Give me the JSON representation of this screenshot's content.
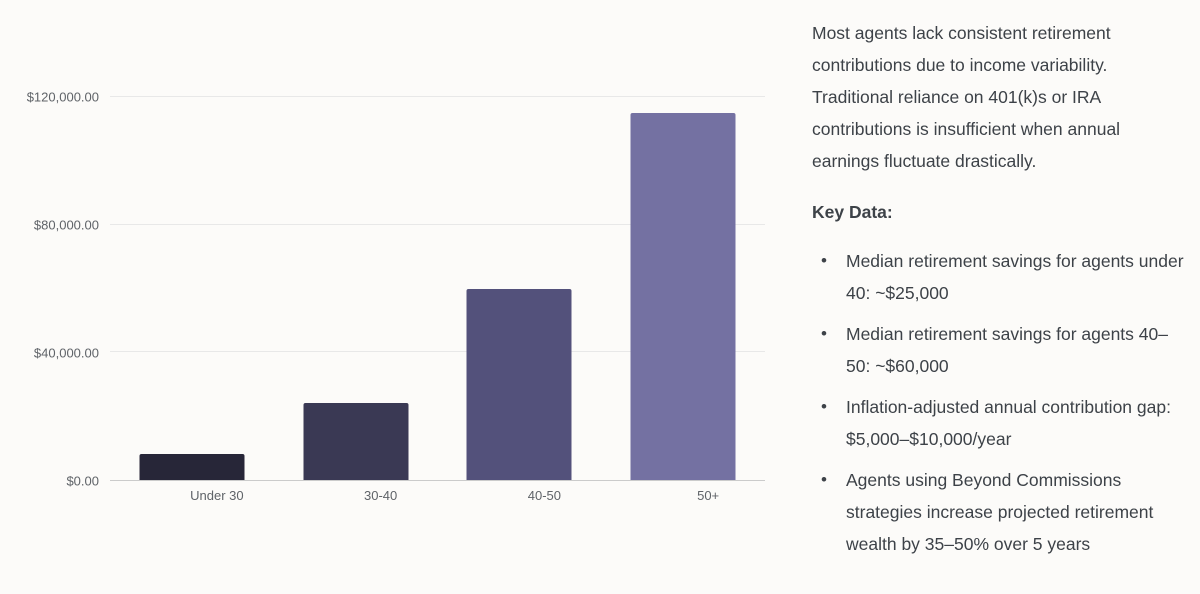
{
  "chart_data": {
    "type": "bar",
    "categories": [
      "Under 30",
      "30-40",
      "40-50",
      "50+"
    ],
    "values": [
      8000,
      24000,
      60000,
      115000
    ],
    "bar_colors": [
      "#272638",
      "#3a3954",
      "#53517b",
      "#7471a2"
    ],
    "title": "",
    "xlabel": "",
    "ylabel": "",
    "ylim": [
      0,
      120000
    ],
    "y_ticks": [
      {
        "value": 0,
        "label": "$0.00"
      },
      {
        "value": 40000,
        "label": "$40,000.00"
      },
      {
        "value": 80000,
        "label": "$80,000.00"
      },
      {
        "value": 120000,
        "label": "$120,000.00"
      }
    ],
    "grid": true,
    "legend": false
  },
  "panel": {
    "intro": "Most agents lack consistent retirement contributions due to income variability. Traditional reliance on 401(k)s or IRA contributions is insufficient when annual earnings fluctuate drastically.",
    "key_data_heading": "Key Data:",
    "bullets": [
      "Median retirement savings for agents under 40: ~$25,000",
      "Median retirement savings for agents 40–50: ~$60,000",
      "Inflation-adjusted annual contribution gap: $5,000–$10,000/year",
      "Agents using Beyond Commissions strategies increase projected retirement wealth by 35–50% over 5 years"
    ]
  },
  "colors": {
    "background": "#fcfbf9",
    "text": "#3d4248",
    "grid": "#e8e8e8",
    "axis_label": "#5f6368"
  }
}
